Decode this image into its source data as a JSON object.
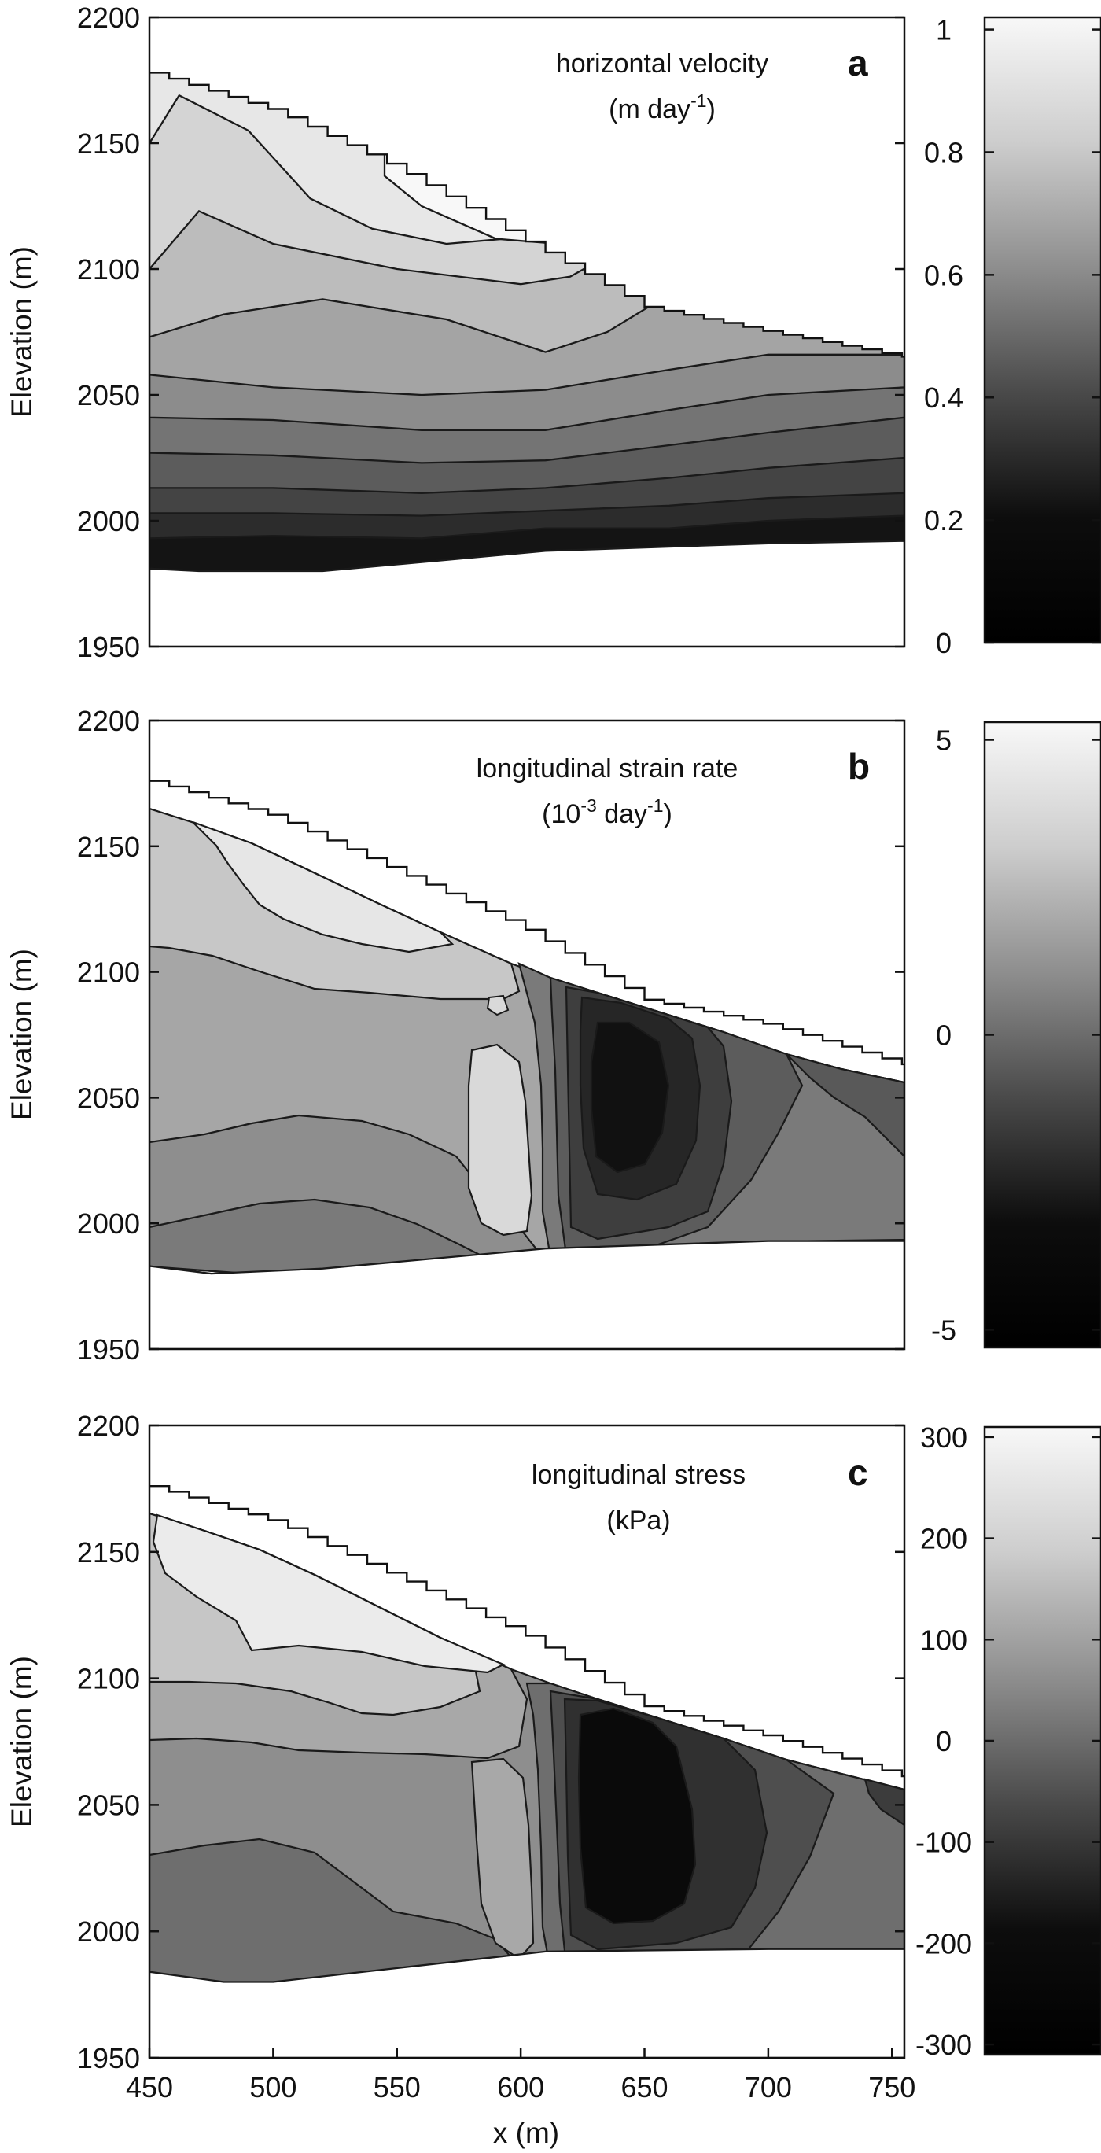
{
  "chart_data": [
    {
      "type": "contour",
      "panel": "a",
      "title": "horizontal velocity",
      "units": "(m day",
      "units_sup": "-1",
      "units_close": ")",
      "xlim": [
        450,
        755
      ],
      "ylim": [
        1950,
        2200
      ],
      "yticks": [
        1950,
        2000,
        2050,
        2100,
        2150,
        2200
      ],
      "ylabel": "Elevation (m)",
      "xlabel": "",
      "colorbar": {
        "range": [
          0,
          1.02
        ],
        "ticks": [
          0,
          0.2,
          0.4,
          0.6,
          0.8,
          1
        ],
        "tick_labels": [
          "0",
          "0.2",
          "0.4",
          "0.6",
          "0.8",
          "1"
        ]
      },
      "surface": [
        [
          450,
          2178
        ],
        [
          500,
          2163
        ],
        [
          550,
          2140
        ],
        [
          600,
          2112
        ],
        [
          650,
          2085
        ],
        [
          700,
          2075
        ],
        [
          755,
          2065
        ]
      ],
      "bed": [
        [
          450,
          1981
        ],
        [
          470,
          1980
        ],
        [
          520,
          1980
        ],
        [
          610,
          1988
        ],
        [
          700,
          1991
        ],
        [
          755,
          1992
        ]
      ],
      "bands": [
        {
          "level": 0.05,
          "lower": [
            [
              450,
              1981
            ],
            [
              470,
              1980
            ],
            [
              520,
              1980
            ],
            [
              610,
              1988
            ],
            [
              700,
              1991
            ],
            [
              755,
              1992
            ]
          ]
        },
        {
          "level": 0.15,
          "lower": [
            [
              450,
              1993
            ],
            [
              500,
              1994
            ],
            [
              560,
              1993
            ],
            [
              610,
              1997
            ],
            [
              660,
              1997
            ],
            [
              700,
              2000
            ],
            [
              755,
              2002
            ]
          ]
        },
        {
          "level": 0.25,
          "lower": [
            [
              450,
              2003
            ],
            [
              500,
              2003
            ],
            [
              560,
              2002
            ],
            [
              610,
              2004
            ],
            [
              660,
              2006
            ],
            [
              700,
              2009
            ],
            [
              755,
              2011
            ]
          ]
        },
        {
          "level": 0.35,
          "lower": [
            [
              450,
              2013
            ],
            [
              500,
              2013
            ],
            [
              560,
              2011
            ],
            [
              610,
              2013
            ],
            [
              660,
              2017
            ],
            [
              700,
              2021
            ],
            [
              755,
              2025
            ]
          ]
        },
        {
          "level": 0.45,
          "lower": [
            [
              450,
              2027
            ],
            [
              500,
              2026
            ],
            [
              560,
              2023
            ],
            [
              610,
              2024
            ],
            [
              660,
              2030
            ],
            [
              700,
              2035
            ],
            [
              755,
              2041
            ]
          ]
        },
        {
          "level": 0.55,
          "lower": [
            [
              450,
              2041
            ],
            [
              500,
              2040
            ],
            [
              560,
              2036
            ],
            [
              610,
              2036
            ],
            [
              660,
              2044
            ],
            [
              700,
              2050
            ],
            [
              755,
              2053
            ]
          ]
        },
        {
          "level": 0.65,
          "lower": [
            [
              450,
              2058
            ],
            [
              500,
              2053
            ],
            [
              560,
              2050
            ],
            [
              610,
              2052
            ],
            [
              660,
              2060
            ],
            [
              700,
              2066
            ],
            [
              755,
              2066
            ]
          ]
        },
        {
          "level": 0.75,
          "lower": [
            [
              450,
              2073
            ],
            [
              480,
              2082
            ],
            [
              520,
              2088
            ],
            [
              570,
              2080
            ],
            [
              610,
              2067
            ],
            [
              635,
              2075
            ],
            [
              660,
              2090
            ],
            [
              690,
              2084
            ]
          ]
        },
        {
          "level": 0.85,
          "lower": [
            [
              450,
              2100
            ],
            [
              470,
              2123
            ],
            [
              500,
              2110
            ],
            [
              550,
              2100
            ],
            [
              600,
              2094
            ],
            [
              620,
              2097
            ],
            [
              640,
              2108
            ],
            [
              660,
              2106
            ]
          ]
        },
        {
          "level": 0.93,
          "lower": [
            [
              450,
              2150
            ],
            [
              462,
              2169
            ],
            [
              490,
              2155
            ],
            [
              515,
              2128
            ],
            [
              540,
              2116
            ],
            [
              570,
              2110
            ],
            [
              605,
              2113
            ],
            [
              630,
              2120
            ],
            [
              650,
              2118
            ]
          ]
        },
        {
          "level": 1.0,
          "lower": [
            [
              545,
              2137
            ],
            [
              560,
              2125
            ],
            [
              590,
              2112
            ],
            [
              615,
              2110
            ],
            [
              635,
              2115
            ],
            [
              645,
              2122
            ]
          ]
        }
      ]
    },
    {
      "type": "contour",
      "panel": "b",
      "title": "longitudinal strain rate",
      "units": "(10",
      "units_sup": "-3",
      "units_mid": " day",
      "units_sup2": "-1",
      "units_close": ")",
      "xlim": [
        450,
        755
      ],
      "ylim": [
        1950,
        2200
      ],
      "yticks": [
        1950,
        2000,
        2050,
        2100,
        2150,
        2200
      ],
      "ylabel": "Elevation (m)",
      "xlabel": "",
      "colorbar": {
        "range": [
          -5.3,
          5.3
        ],
        "ticks": [
          -5,
          0,
          5
        ],
        "tick_labels": [
          "-5",
          "0",
          "5"
        ]
      },
      "surface": [
        [
          450,
          2176
        ],
        [
          500,
          2162
        ],
        [
          550,
          2140
        ],
        [
          600,
          2118
        ],
        [
          650,
          2089
        ],
        [
          700,
          2079
        ],
        [
          755,
          2063
        ]
      ],
      "bed": [
        [
          450,
          1983
        ],
        [
          475,
          1980
        ],
        [
          520,
          1982
        ],
        [
          610,
          1990
        ],
        [
          700,
          1993
        ],
        [
          755,
          1993
        ]
      ]
    },
    {
      "type": "contour",
      "panel": "c",
      "title": "longitudinal stress",
      "units": "(kPa)",
      "xlim": [
        450,
        755
      ],
      "ylim": [
        1950,
        2200
      ],
      "yticks": [
        1950,
        2000,
        2050,
        2100,
        2150,
        2200
      ],
      "xticks": [
        450,
        500,
        550,
        600,
        650,
        700,
        750
      ],
      "ylabel": "Elevation (m)",
      "xlabel": "x (m)",
      "colorbar": {
        "range": [
          -310,
          310
        ],
        "ticks": [
          -300,
          -200,
          -100,
          0,
          100,
          200,
          300
        ],
        "tick_labels": [
          "-300",
          "-200",
          "-100",
          "0",
          "100",
          "200",
          "300"
        ]
      },
      "surface": [
        [
          450,
          2176
        ],
        [
          500,
          2162
        ],
        [
          550,
          2140
        ],
        [
          600,
          2118
        ],
        [
          650,
          2089
        ],
        [
          700,
          2077
        ],
        [
          755,
          2061
        ]
      ],
      "bed": [
        [
          450,
          1984
        ],
        [
          480,
          1980
        ],
        [
          500,
          1980
        ],
        [
          610,
          1992
        ],
        [
          700,
          1993
        ],
        [
          755,
          1993
        ]
      ]
    }
  ]
}
